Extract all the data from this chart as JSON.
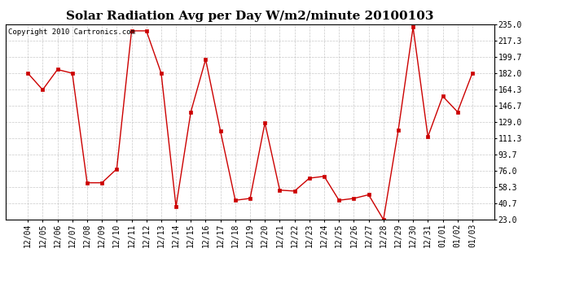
{
  "title": "Solar Radiation Avg per Day W/m2/minute 20100103",
  "copyright_text": "Copyright 2010 Cartronics.com",
  "dates": [
    "12/04",
    "12/05",
    "12/06",
    "12/07",
    "12/08",
    "12/09",
    "12/10",
    "12/11",
    "12/12",
    "12/13",
    "12/14",
    "12/15",
    "12/16",
    "12/17",
    "12/18",
    "12/19",
    "12/20",
    "12/21",
    "12/22",
    "12/23",
    "12/24",
    "12/25",
    "12/26",
    "12/27",
    "12/28",
    "12/29",
    "12/30",
    "12/31",
    "01/01",
    "01/02",
    "01/03"
  ],
  "values": [
    182,
    164,
    186,
    182,
    63,
    63,
    78,
    228,
    228,
    182,
    37,
    140,
    197,
    119,
    44,
    46,
    128,
    55,
    54,
    68,
    70,
    44,
    46,
    50,
    23,
    120,
    232,
    113,
    157,
    140,
    182
  ],
  "line_color": "#cc0000",
  "marker_color": "#cc0000",
  "background_color": "#ffffff",
  "plot_bg_color": "#ffffff",
  "grid_color": "#bbbbbb",
  "ylim": [
    23.0,
    235.0
  ],
  "yticks": [
    23.0,
    40.7,
    58.3,
    76.0,
    93.7,
    111.3,
    129.0,
    146.7,
    164.3,
    182.0,
    199.7,
    217.3,
    235.0
  ],
  "title_fontsize": 11,
  "copyright_fontsize": 6.5,
  "tick_fontsize": 7
}
